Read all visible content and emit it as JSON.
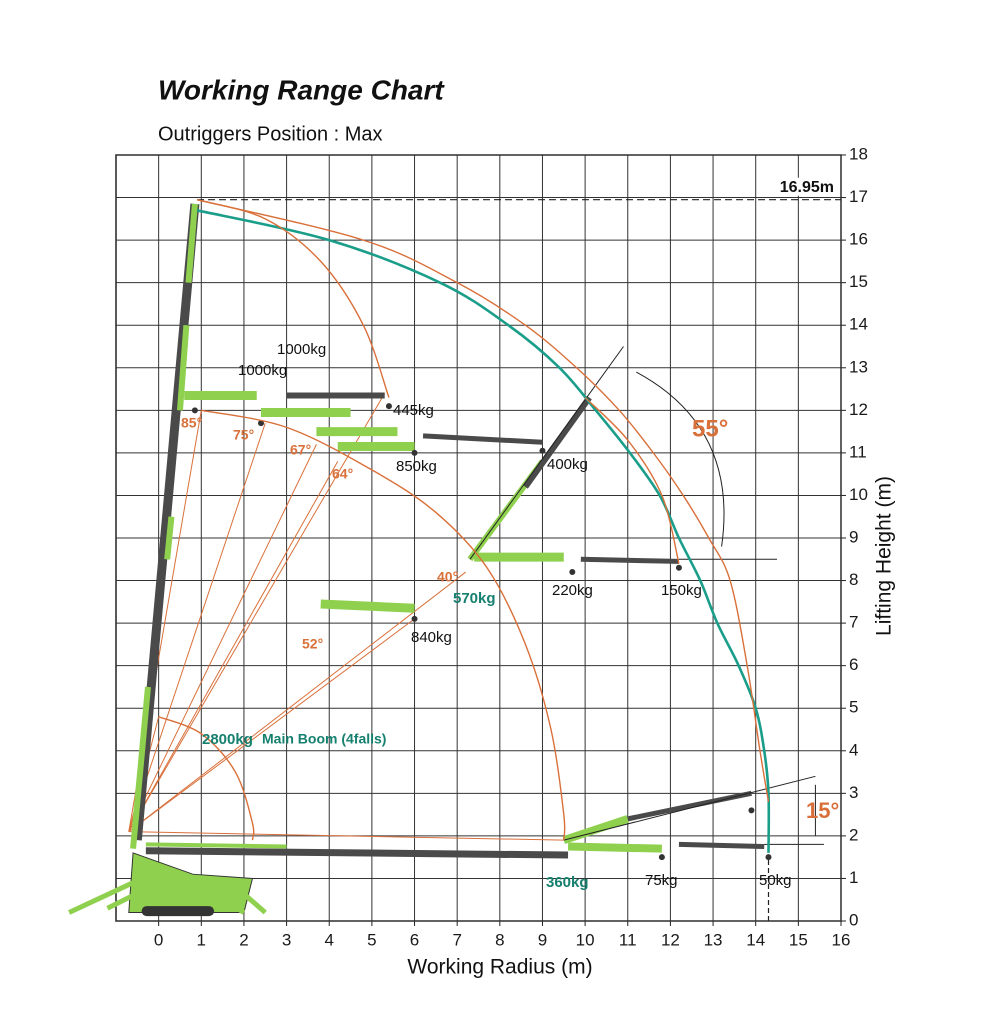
{
  "chart_data": {
    "type": "line",
    "title": "Working Range Chart",
    "subtitle": "Outriggers Position : Max",
    "x_label": "Working Radius (m)",
    "y_label": "Lifting Height (m)",
    "xlim": [
      -1,
      16
    ],
    "ylim": [
      0,
      18
    ],
    "xticks": [
      0,
      1,
      2,
      3,
      4,
      5,
      6,
      7,
      8,
      9,
      10,
      11,
      12,
      13,
      14,
      15,
      16
    ],
    "yticks": [
      0,
      1,
      2,
      3,
      4,
      5,
      6,
      7,
      8,
      9,
      10,
      11,
      12,
      13,
      14,
      15,
      16,
      17,
      18
    ],
    "grid": true,
    "reference_line": {
      "value": 16.95,
      "label": "16.95m"
    },
    "series": [
      {
        "color": "#1a9e8a",
        "x": [
          0.9,
          4.0,
          6.6,
          8.2,
          9.4,
          10.25,
          11.05,
          11.75,
          12.2,
          12.7,
          13.1,
          13.6,
          14.0,
          14.2,
          14.3,
          14.3
        ],
        "values": [
          16.7,
          16,
          15,
          14,
          13,
          12,
          11,
          10,
          9,
          8,
          7,
          6,
          5,
          4,
          3,
          1.6
        ]
      },
      {
        "color": "#d9703a",
        "x": [
          0.9,
          4.8,
          7.0,
          8.6,
          9.8,
          10.8,
          11.6,
          12.3,
          12.9,
          13.4,
          13.8,
          14.1,
          14.3
        ],
        "values": [
          16.95,
          16,
          15,
          14,
          13,
          12,
          11,
          10,
          9,
          8,
          6,
          4,
          2.8
        ]
      },
      {
        "color": "#d9703a",
        "x": [
          0.9,
          2.5,
          3.8,
          4.8,
          5.4
        ],
        "values": [
          16.95,
          16.5,
          15.5,
          14.0,
          12.3
        ]
      },
      {
        "color": "#d9703a",
        "x": [
          1,
          3,
          5,
          6.5,
          7.7,
          8.6,
          9.2,
          9.5,
          9.5
        ],
        "values": [
          12,
          11.6,
          10.6,
          9.6,
          8.3,
          6.5,
          4.5,
          2.5,
          1.9
        ]
      },
      {
        "color": "#d9703a",
        "x": [
          10,
          11,
          11.8,
          12.2
        ],
        "values": [
          12.3,
          11.3,
          10,
          8.4
        ]
      },
      {
        "color": "#d9703a",
        "x": [
          0,
          1,
          1.8,
          2.2,
          2.2
        ],
        "values": [
          4.8,
          4.4,
          3.5,
          2.3,
          1.9
        ]
      }
    ],
    "annotations": [
      "1000kg",
      "1000kg",
      "445kg",
      "850kg",
      "400kg",
      "220kg",
      "150kg",
      "570kg",
      "840kg",
      "360kg",
      "75kg",
      "50kg",
      "2800kg",
      "Main Boom (4falls)",
      "85°",
      "75°",
      "67°",
      "64°",
      "40°",
      "52°",
      "55°",
      "15°"
    ]
  }
}
